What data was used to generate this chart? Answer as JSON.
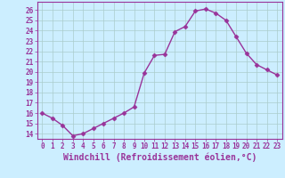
{
  "x": [
    0,
    1,
    2,
    3,
    4,
    5,
    6,
    7,
    8,
    9,
    10,
    11,
    12,
    13,
    14,
    15,
    16,
    17,
    18,
    19,
    20,
    21,
    22,
    23
  ],
  "y": [
    16.0,
    15.5,
    14.8,
    13.8,
    14.0,
    14.5,
    15.0,
    15.5,
    16.0,
    16.6,
    19.9,
    21.6,
    21.7,
    23.9,
    24.4,
    25.9,
    26.1,
    25.7,
    25.0,
    23.4,
    21.8,
    20.7,
    20.2,
    19.7
  ],
  "line_color": "#993399",
  "marker": "D",
  "marker_size": 2.5,
  "bg_color": "#cceeff",
  "grid_color": "#aacccc",
  "xlabel": "Windchill (Refroidissement éolien,°C)",
  "ylim": [
    13.5,
    26.8
  ],
  "xlim": [
    -0.5,
    23.5
  ],
  "yticks": [
    14,
    15,
    16,
    17,
    18,
    19,
    20,
    21,
    22,
    23,
    24,
    25,
    26
  ],
  "xticks": [
    0,
    1,
    2,
    3,
    4,
    5,
    6,
    7,
    8,
    9,
    10,
    11,
    12,
    13,
    14,
    15,
    16,
    17,
    18,
    19,
    20,
    21,
    22,
    23
  ],
  "tick_label_color": "#993399",
  "tick_label_fontsize": 5.5,
  "xlabel_fontsize": 7.0,
  "spine_color": "#993399",
  "linewidth": 1.0
}
